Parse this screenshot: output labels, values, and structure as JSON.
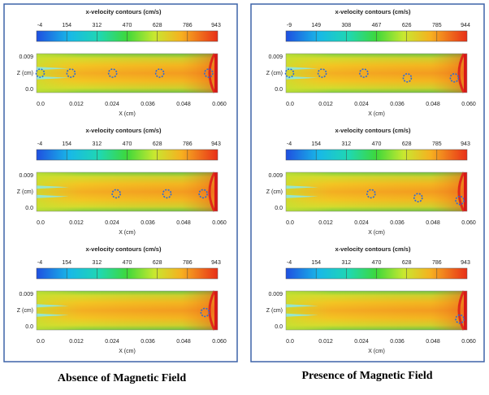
{
  "panels": [
    {
      "caption": "Absence of Magnetic Field",
      "plots": [
        {
          "title": "x-velocity contours (cm/s)",
          "colorbar": [
            "-4",
            "154",
            "312",
            "470",
            "628",
            "786",
            "943"
          ],
          "y_label": "Z (cm)",
          "y_ticks": [
            "0.009",
            "0.0"
          ],
          "x_label": "X (cm)",
          "x_ticks": [
            "0.0",
            "0.012",
            "0.024",
            "0.036",
            "0.048",
            "0.060"
          ]
        },
        {
          "title": "x-velocity contours (cm/s)",
          "colorbar": [
            "-4",
            "154",
            "312",
            "470",
            "628",
            "786",
            "943"
          ],
          "y_label": "Z (cm)",
          "y_ticks": [
            "0.009",
            "0.0"
          ],
          "x_label": "X (cm)",
          "x_ticks": [
            "0.0",
            "0.012",
            "0.024",
            "0.036",
            "0.048",
            "0.060"
          ]
        },
        {
          "title": "x-velocity contours (cm/s)",
          "colorbar": [
            "-4",
            "154",
            "312",
            "470",
            "628",
            "786",
            "943"
          ],
          "y_label": "Z (cm)",
          "y_ticks": [
            "0.009",
            "0.0"
          ],
          "x_label": "X (cm)",
          "x_ticks": [
            "0.0",
            "0.012",
            "0.024",
            "0.036",
            "0.048",
            "0.060"
          ]
        }
      ]
    },
    {
      "caption": "Presence of Magnetic Field",
      "plots": [
        {
          "title": "x-velocity contours (cm/s)",
          "colorbar": [
            "-9",
            "149",
            "308",
            "467",
            "626",
            "785",
            "944"
          ],
          "y_label": "Z (cm)",
          "y_ticks": [
            "0.009",
            "0.0"
          ],
          "x_label": "X (cm)",
          "x_ticks": [
            "0.0",
            "0.012",
            "0.024",
            "0.036",
            "0.048",
            "0.060"
          ]
        },
        {
          "title": "x-velocity contours (cm/s)",
          "colorbar": [
            "-4",
            "154",
            "312",
            "470",
            "628",
            "785",
            "943"
          ],
          "y_label": "Z (cm)",
          "y_ticks": [
            "0.009",
            "0.0"
          ],
          "x_label": "X (cm)",
          "x_ticks": [
            "0.0",
            "0.012",
            "0.024",
            "0.036",
            "0.048",
            "0.060"
          ]
        },
        {
          "title": "x-velocity contours (cm/s)",
          "colorbar": [
            "-4",
            "154",
            "312",
            "470",
            "628",
            "786",
            "943"
          ],
          "y_label": "Z (cm)",
          "y_ticks": [
            "0.009",
            "0.0"
          ],
          "x_label": "X (cm)",
          "x_ticks": [
            "0.0",
            "0.012",
            "0.024",
            "0.036",
            "0.048",
            "0.060"
          ]
        }
      ]
    }
  ]
}
